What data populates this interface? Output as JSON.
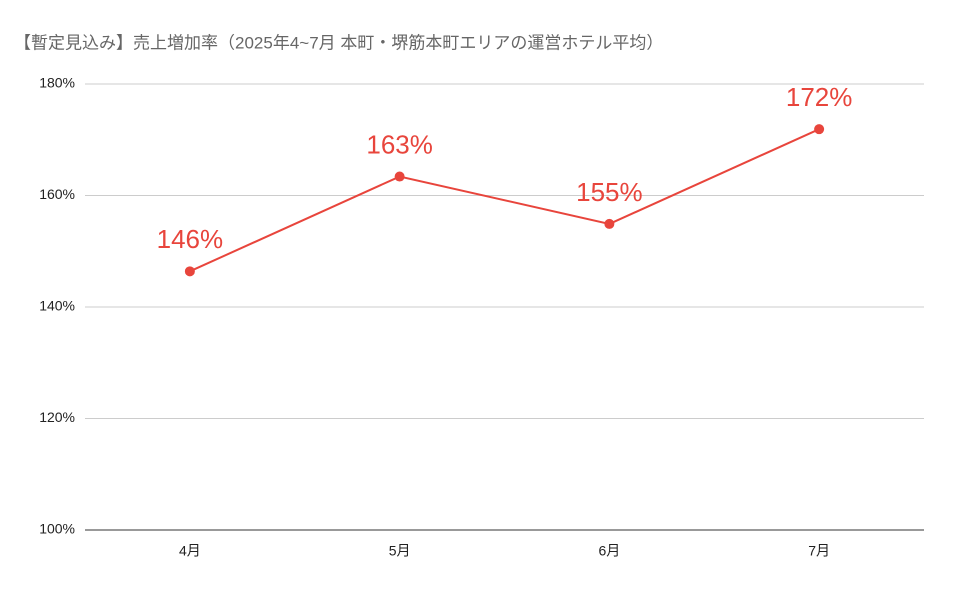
{
  "chart_data": {
    "type": "line",
    "title": "【暫定見込み】売上増加率（2025年4~7月 本町・堺筋本町エリアの運営ホテル平均）",
    "categories": [
      "4月",
      "5月",
      "6月",
      "7月"
    ],
    "series": [
      {
        "color": "#e8453c",
        "values": [
          146.4,
          163.4,
          154.9,
          171.9
        ],
        "value_labels": [
          "146%",
          "163%",
          "155%",
          "172%"
        ]
      }
    ],
    "ylim": [
      100,
      180
    ],
    "yticks": [
      {
        "value": 100,
        "label": "100%"
      },
      {
        "value": 120,
        "label": "120%"
      },
      {
        "value": 140,
        "label": "140%"
      },
      {
        "value": 160,
        "label": "160%"
      },
      {
        "value": 180,
        "label": "180%"
      }
    ],
    "grid": true
  }
}
